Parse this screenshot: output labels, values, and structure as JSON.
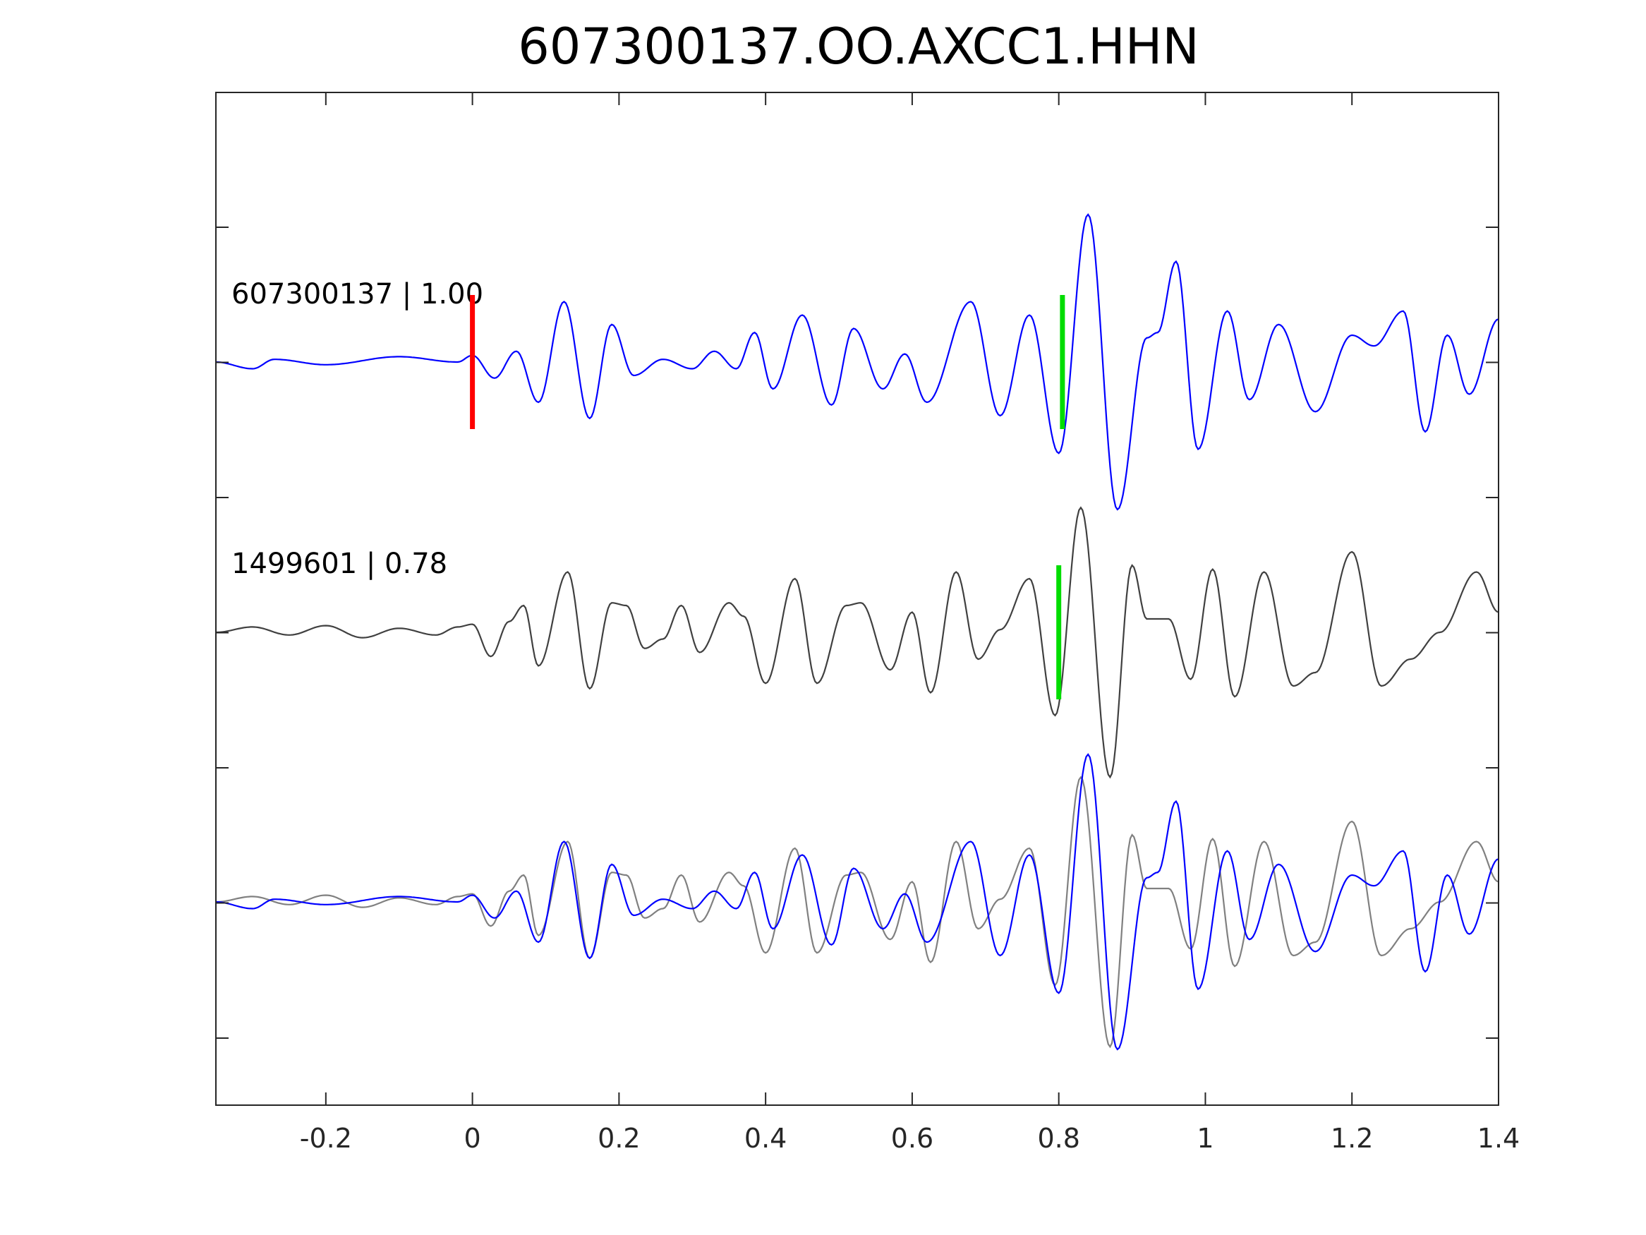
{
  "chart_data": {
    "type": "line",
    "title": "607300137.OO.AXCC1.HHN",
    "xlabel": "",
    "ylabel": "",
    "xlim": [
      -0.35,
      1.4
    ],
    "x_ticks": [
      -0.2,
      0,
      0.2,
      0.4,
      0.6,
      0.8,
      1,
      1.2,
      1.4
    ],
    "x_tick_labels": [
      "-0.2",
      "0",
      "0.2",
      "0.4",
      "0.6",
      "0.8",
      "1",
      "1.2",
      "1.4"
    ],
    "y_tick_count": 7,
    "grid": false,
    "legend": "none",
    "traces": [
      {
        "label": "607300137 | 1.00",
        "color": "#0000ff",
        "picks": [
          {
            "x": 0.0,
            "color": "#ff0000"
          },
          {
            "x": 0.805,
            "color": "#00dd00"
          }
        ],
        "keypoints": [
          [
            -0.35,
            0.0
          ],
          [
            -0.3,
            -0.05
          ],
          [
            -0.27,
            0.02
          ],
          [
            -0.2,
            -0.02
          ],
          [
            -0.1,
            0.04
          ],
          [
            -0.02,
            0.0
          ],
          [
            0.0,
            0.05
          ],
          [
            0.03,
            -0.12
          ],
          [
            0.06,
            0.08
          ],
          [
            0.09,
            -0.3
          ],
          [
            0.125,
            0.45
          ],
          [
            0.16,
            -0.42
          ],
          [
            0.19,
            0.28
          ],
          [
            0.22,
            -0.1
          ],
          [
            0.26,
            0.02
          ],
          [
            0.3,
            -0.05
          ],
          [
            0.33,
            0.08
          ],
          [
            0.36,
            -0.05
          ],
          [
            0.385,
            0.22
          ],
          [
            0.41,
            -0.2
          ],
          [
            0.45,
            0.35
          ],
          [
            0.49,
            -0.32
          ],
          [
            0.52,
            0.25
          ],
          [
            0.56,
            -0.2
          ],
          [
            0.59,
            0.06
          ],
          [
            0.62,
            -0.3
          ],
          [
            0.68,
            0.45
          ],
          [
            0.72,
            -0.4
          ],
          [
            0.76,
            0.35
          ],
          [
            0.8,
            -0.68
          ],
          [
            0.84,
            1.1
          ],
          [
            0.88,
            -1.1
          ],
          [
            0.92,
            0.18
          ],
          [
            0.935,
            0.22
          ],
          [
            0.96,
            0.75
          ],
          [
            0.99,
            -0.65
          ],
          [
            1.03,
            0.38
          ],
          [
            1.06,
            -0.28
          ],
          [
            1.1,
            0.28
          ],
          [
            1.15,
            -0.37
          ],
          [
            1.2,
            0.2
          ],
          [
            1.23,
            0.12
          ],
          [
            1.27,
            0.38
          ],
          [
            1.3,
            -0.52
          ],
          [
            1.33,
            0.2
          ],
          [
            1.36,
            -0.24
          ],
          [
            1.4,
            0.32
          ]
        ]
      },
      {
        "label": "1499601 | 0.78",
        "color": "#404040",
        "picks": [
          {
            "x": 0.8,
            "color": "#00dd00"
          }
        ],
        "keypoints": [
          [
            -0.35,
            0.0
          ],
          [
            -0.3,
            0.04
          ],
          [
            -0.25,
            -0.02
          ],
          [
            -0.2,
            0.05
          ],
          [
            -0.15,
            -0.04
          ],
          [
            -0.1,
            0.03
          ],
          [
            -0.05,
            -0.02
          ],
          [
            -0.02,
            0.04
          ],
          [
            0.0,
            0.06
          ],
          [
            0.025,
            -0.18
          ],
          [
            0.05,
            0.08
          ],
          [
            0.07,
            0.2
          ],
          [
            0.09,
            -0.25
          ],
          [
            0.13,
            0.45
          ],
          [
            0.16,
            -0.42
          ],
          [
            0.19,
            0.22
          ],
          [
            0.21,
            0.2
          ],
          [
            0.235,
            -0.12
          ],
          [
            0.26,
            -0.05
          ],
          [
            0.285,
            0.2
          ],
          [
            0.31,
            -0.15
          ],
          [
            0.35,
            0.22
          ],
          [
            0.37,
            0.12
          ],
          [
            0.4,
            -0.38
          ],
          [
            0.44,
            0.4
          ],
          [
            0.47,
            -0.38
          ],
          [
            0.51,
            0.2
          ],
          [
            0.53,
            0.22
          ],
          [
            0.57,
            -0.28
          ],
          [
            0.6,
            0.15
          ],
          [
            0.625,
            -0.45
          ],
          [
            0.66,
            0.45
          ],
          [
            0.69,
            -0.2
          ],
          [
            0.72,
            0.02
          ],
          [
            0.76,
            0.4
          ],
          [
            0.795,
            -0.62
          ],
          [
            0.83,
            0.93
          ],
          [
            0.87,
            -1.08
          ],
          [
            0.9,
            0.5
          ],
          [
            0.92,
            0.1
          ],
          [
            0.95,
            0.1
          ],
          [
            0.98,
            -0.35
          ],
          [
            1.01,
            0.47
          ],
          [
            1.04,
            -0.48
          ],
          [
            1.08,
            0.45
          ],
          [
            1.12,
            -0.4
          ],
          [
            1.15,
            -0.3
          ],
          [
            1.2,
            0.6
          ],
          [
            1.24,
            -0.4
          ],
          [
            1.28,
            -0.2
          ],
          [
            1.32,
            0.0
          ],
          [
            1.37,
            0.45
          ],
          [
            1.4,
            0.15
          ]
        ]
      }
    ]
  }
}
